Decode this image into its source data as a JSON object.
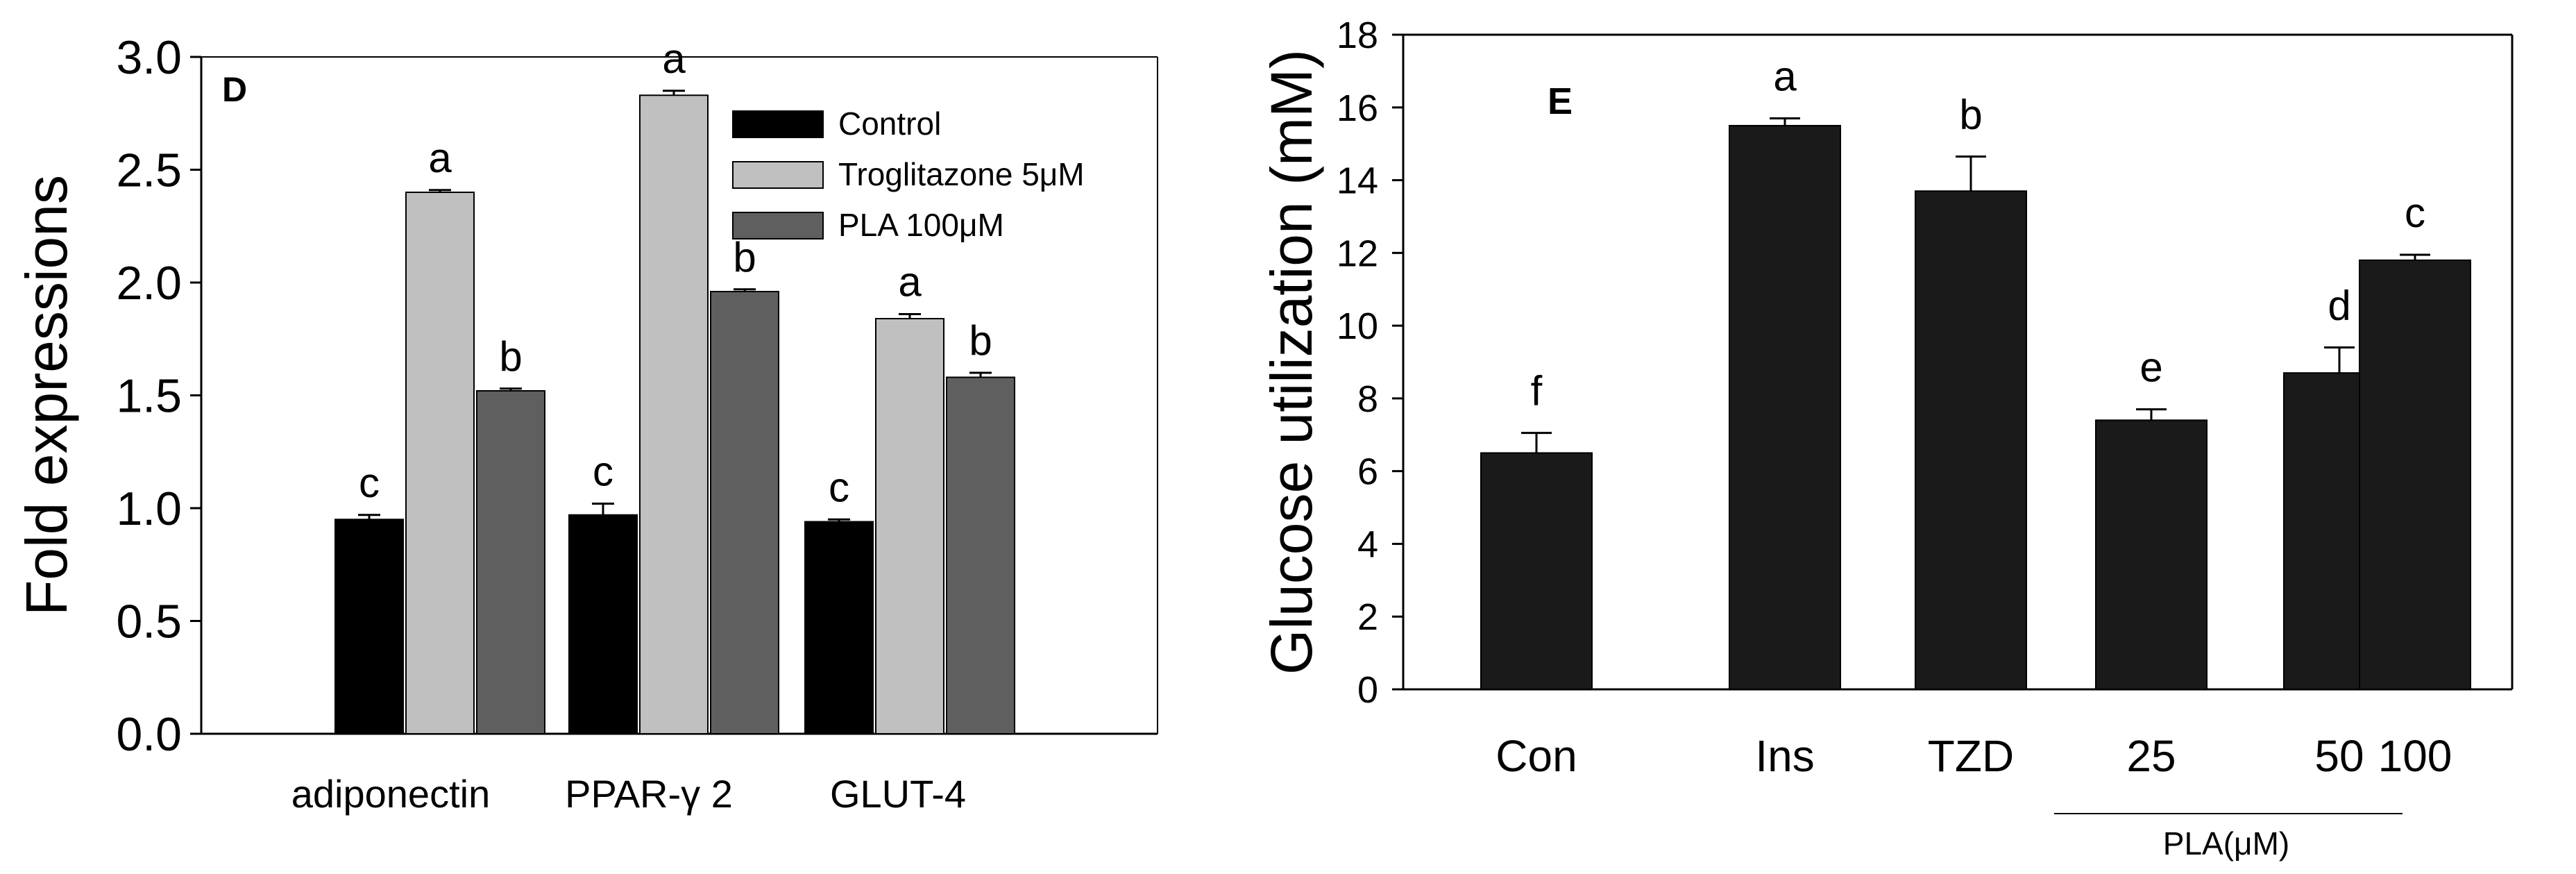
{
  "chart_data": [
    {
      "panel_label": "D",
      "type": "bar",
      "ylabel": "Fold expressions",
      "xlabel": "",
      "ylim": [
        0,
        3.0
      ],
      "yticks": [
        "0.0",
        "0.5",
        "1.0",
        "1.5",
        "2.0",
        "2.5",
        "3.0"
      ],
      "categories": [
        "adiponectin",
        "PPAR-γ  2",
        "GLUT-4"
      ],
      "series": [
        {
          "name": "Control",
          "color": "#000000",
          "values": [
            0.95,
            0.97,
            0.94
          ],
          "errors": [
            0.02,
            0.05,
            0.01
          ],
          "sig": [
            "c",
            "c",
            "c"
          ]
        },
        {
          "name": "Troglitazone 5μM",
          "color": "#c0c0c0",
          "values": [
            2.4,
            2.83,
            1.84
          ],
          "errors": [
            0.01,
            0.02,
            0.02
          ],
          "sig": [
            "a",
            "a",
            "a"
          ]
        },
        {
          "name": "PLA 100μM",
          "color": "#5f5f5f",
          "values": [
            1.52,
            1.96,
            1.58
          ],
          "errors": [
            0.01,
            0.01,
            0.02
          ],
          "sig": [
            "b",
            "b",
            "b"
          ]
        }
      ],
      "legend_position": "top-right",
      "grid": false
    },
    {
      "panel_label": "E",
      "type": "bar",
      "ylabel": "Glucose utilization (mM)",
      "xlabel": "PLA(μM)",
      "ylim": [
        0,
        18
      ],
      "yticks": [
        "0",
        "2",
        "4",
        "6",
        "8",
        "10",
        "12",
        "14",
        "16",
        "18"
      ],
      "categories": [
        "Con",
        "Ins",
        "TZD",
        "25",
        "50",
        "100"
      ],
      "values": [
        6.5,
        15.5,
        13.7,
        7.4,
        8.7,
        11.8
      ],
      "errors": [
        0.55,
        0.2,
        0.95,
        0.3,
        0.7,
        0.15
      ],
      "sig": [
        "f",
        "a",
        "b",
        "e",
        "d",
        "c"
      ],
      "color": "#1a1a1a",
      "grid": false
    }
  ]
}
